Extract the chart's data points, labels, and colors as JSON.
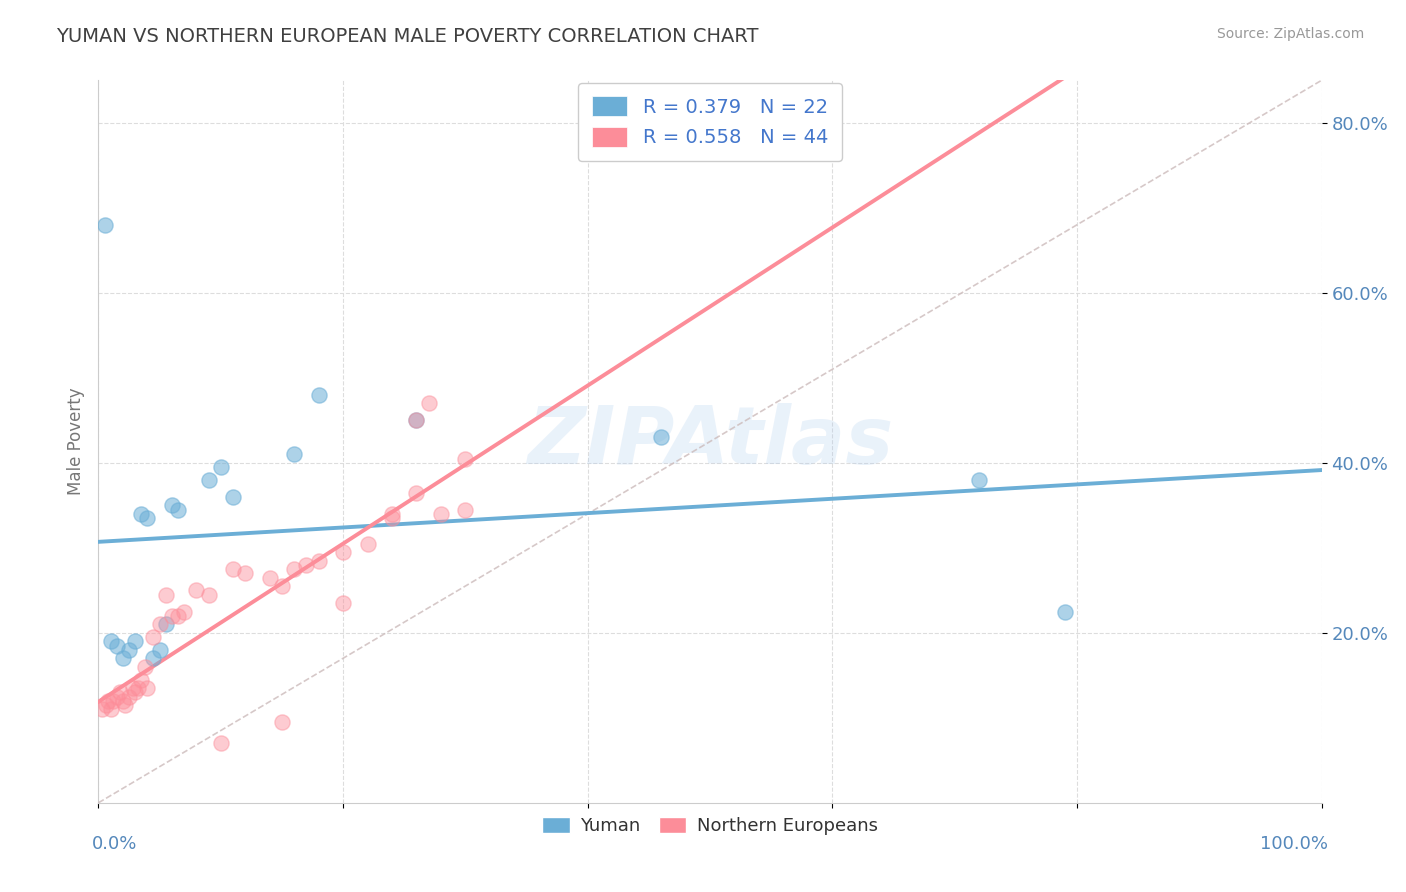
{
  "title": "YUMAN VS NORTHERN EUROPEAN MALE POVERTY CORRELATION CHART",
  "source": "Source: ZipAtlas.com",
  "ylabel": "Male Poverty",
  "watermark": "ZIPAtlas",
  "legend_blue_r": "R = 0.379",
  "legend_blue_n": "N = 22",
  "legend_pink_r": "R = 0.558",
  "legend_pink_n": "N = 44",
  "yuman_color": "#6baed6",
  "northern_color": "#fc8d99",
  "yuman_scatter": [
    [
      0.5,
      68.0
    ],
    [
      1.0,
      19.0
    ],
    [
      1.5,
      18.5
    ],
    [
      2.0,
      17.0
    ],
    [
      2.5,
      18.0
    ],
    [
      3.0,
      19.0
    ],
    [
      3.5,
      34.0
    ],
    [
      4.0,
      33.5
    ],
    [
      4.5,
      17.0
    ],
    [
      5.0,
      18.0
    ],
    [
      5.5,
      21.0
    ],
    [
      6.0,
      35.0
    ],
    [
      6.5,
      34.5
    ],
    [
      9.0,
      38.0
    ],
    [
      10.0,
      39.5
    ],
    [
      11.0,
      36.0
    ],
    [
      16.0,
      41.0
    ],
    [
      18.0,
      48.0
    ],
    [
      26.0,
      45.0
    ],
    [
      46.0,
      43.0
    ],
    [
      72.0,
      38.0
    ],
    [
      79.0,
      22.5
    ]
  ],
  "northern_scatter": [
    [
      0.3,
      11.0
    ],
    [
      0.6,
      11.5
    ],
    [
      0.8,
      12.0
    ],
    [
      1.0,
      11.0
    ],
    [
      1.2,
      12.0
    ],
    [
      1.5,
      12.5
    ],
    [
      1.8,
      13.0
    ],
    [
      2.0,
      12.0
    ],
    [
      2.2,
      11.5
    ],
    [
      2.5,
      12.5
    ],
    [
      2.8,
      13.5
    ],
    [
      3.0,
      13.0
    ],
    [
      3.2,
      13.5
    ],
    [
      3.5,
      14.5
    ],
    [
      3.8,
      16.0
    ],
    [
      4.0,
      13.5
    ],
    [
      4.5,
      19.5
    ],
    [
      5.0,
      21.0
    ],
    [
      5.5,
      24.5
    ],
    [
      6.0,
      22.0
    ],
    [
      6.5,
      22.0
    ],
    [
      7.0,
      22.5
    ],
    [
      8.0,
      25.0
    ],
    [
      9.0,
      24.5
    ],
    [
      10.0,
      7.0
    ],
    [
      11.0,
      27.5
    ],
    [
      12.0,
      27.0
    ],
    [
      14.0,
      26.5
    ],
    [
      15.0,
      9.5
    ],
    [
      15.0,
      25.5
    ],
    [
      16.0,
      27.5
    ],
    [
      17.0,
      28.0
    ],
    [
      18.0,
      28.5
    ],
    [
      20.0,
      23.5
    ],
    [
      20.0,
      29.5
    ],
    [
      22.0,
      30.5
    ],
    [
      24.0,
      34.0
    ],
    [
      24.0,
      33.5
    ],
    [
      26.0,
      36.5
    ],
    [
      26.0,
      45.0
    ],
    [
      27.0,
      47.0
    ],
    [
      28.0,
      34.0
    ],
    [
      30.0,
      34.5
    ],
    [
      30.0,
      40.5
    ]
  ],
  "xmin": 0,
  "xmax": 100,
  "ymin": 0,
  "ymax": 85,
  "ytick_positions": [
    20,
    40,
    60,
    80
  ],
  "ytick_labels": [
    "20.0%",
    "40.0%",
    "60.0%",
    "80.0%"
  ],
  "xtick_positions": [
    0,
    20,
    40,
    60,
    80,
    100
  ],
  "background_color": "#ffffff",
  "grid_color": "#dddddd",
  "title_color": "#404040",
  "axis_label_color": "#5588bb",
  "legend_text_color": "#4477cc"
}
